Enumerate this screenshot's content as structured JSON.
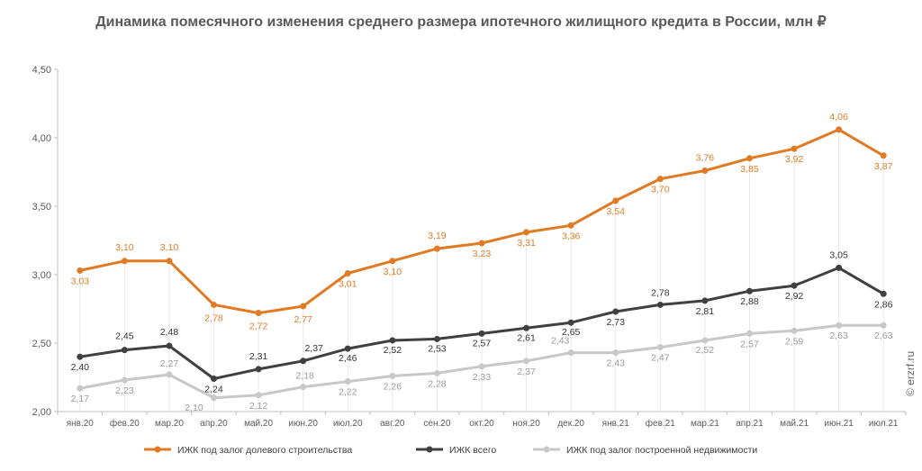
{
  "chart_data": {
    "type": "line",
    "title": "Динамика помесячного изменения среднего размера ипотечного жилищного кредита в России, млн ₽",
    "xlabel": "",
    "ylabel": "",
    "ylim": [
      2.0,
      4.5
    ],
    "yticks": [
      "2,00",
      "2,50",
      "3,00",
      "3,50",
      "4,00",
      "4,50"
    ],
    "grid": false,
    "legend_position": "bottom",
    "categories": [
      "янв.20",
      "фев.20",
      "мар.20",
      "апр.20",
      "май.20",
      "июн.20",
      "июл.20",
      "авг.20",
      "сен.20",
      "окт.20",
      "ноя.20",
      "дек.20",
      "янв.21",
      "фев.21",
      "мар.21",
      "апр.21",
      "май.21",
      "июн.21",
      "июл.21"
    ],
    "series": [
      {
        "name": "ИЖК под залог долевого строительства",
        "color": "#e07b24",
        "label_color": "#e07b24",
        "values": [
          3.03,
          3.1,
          3.1,
          2.78,
          2.72,
          2.77,
          3.01,
          3.1,
          3.19,
          3.23,
          3.31,
          3.36,
          3.54,
          3.7,
          3.76,
          3.85,
          3.92,
          4.06,
          3.87
        ],
        "labels": [
          "3,03",
          "3,10",
          "3,10",
          "2,78",
          "2,72",
          "2,77",
          "3,01",
          "3,10",
          "3,19",
          "3,23",
          "3,31",
          "3,36",
          "3,54",
          "3,70",
          "3,76",
          "3,85",
          "3,92",
          "4,06",
          "3,87"
        ]
      },
      {
        "name": "ИЖК всего",
        "color": "#404040",
        "label_color": "#333333",
        "values": [
          2.4,
          2.45,
          2.48,
          2.24,
          2.31,
          2.37,
          2.46,
          2.52,
          2.53,
          2.57,
          2.61,
          2.65,
          2.73,
          2.78,
          2.81,
          2.88,
          2.92,
          3.05,
          2.86
        ],
        "labels": [
          "2,40",
          "2,45",
          "2,48",
          "2,24",
          "2,31",
          "2,37",
          "2,46",
          "2,52",
          "2,53",
          "2,57",
          "2,61",
          "2,65",
          "2,73",
          "2,78",
          "2,81",
          "2,88",
          "2,92",
          "3,05",
          "2,86"
        ]
      },
      {
        "name": "ИЖК под залог построенной недвижимости",
        "color": "#c8c8c8",
        "label_color": "#9a9a9a",
        "values": [
          2.17,
          2.23,
          2.27,
          2.1,
          2.12,
          2.18,
          2.22,
          2.26,
          2.28,
          2.33,
          2.37,
          2.43,
          2.43,
          2.47,
          2.52,
          2.57,
          2.59,
          2.63,
          2.63
        ],
        "labels": [
          "2,17",
          "2,23",
          "2,27",
          "2,10",
          "2,12",
          "2,18",
          "2,22",
          "2,26",
          "2,28",
          "2,33",
          "2,37",
          "2,43",
          "2,43",
          "2,47",
          "2,52",
          "2,57",
          "2,59",
          "2,63",
          "2,63"
        ]
      }
    ]
  },
  "watermark": "© erzrf.ru"
}
